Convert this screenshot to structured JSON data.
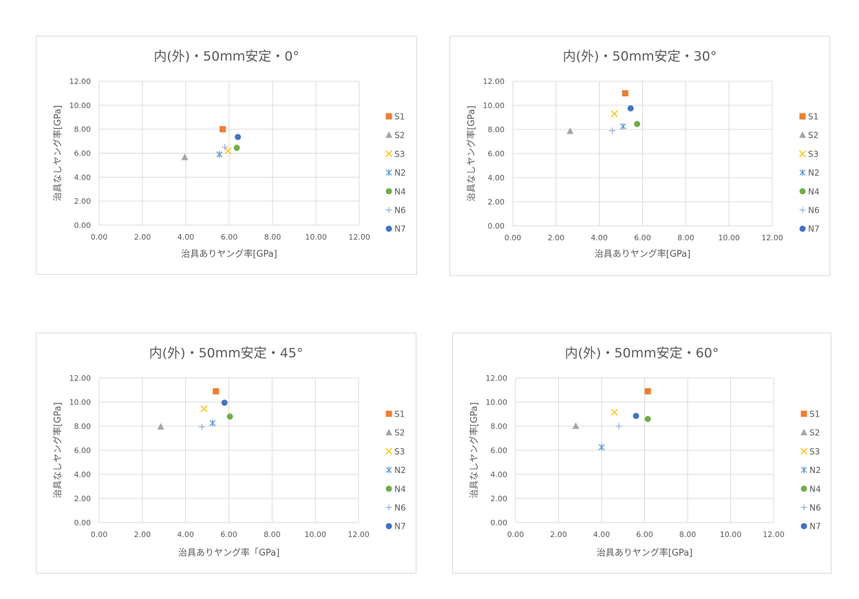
{
  "colors": {
    "S1": "#ed7d31",
    "S2": "#a5a5a5",
    "S3": "#ffc000",
    "N2": "#5b9bd5",
    "N4": "#70ad47",
    "N6": "#8faadc",
    "N7": "#4472c4"
  },
  "chart_data": [
    {
      "type": "scatter",
      "title": "内(外)・50mm安定・0°",
      "xlabel": "治具ありヤング率[GPa]",
      "ylabel": "治具なしヤング率[GPa]",
      "xlim": [
        0,
        12
      ],
      "ylim": [
        0,
        12
      ],
      "x_ticks": [
        "0.00",
        "2.00",
        "4.00",
        "6.00",
        "8.00",
        "10.00",
        "12.00"
      ],
      "y_ticks": [
        "0.00",
        "2.00",
        "4.00",
        "6.00",
        "8.00",
        "10.00",
        "12.00"
      ],
      "grid": true,
      "legend": "right",
      "series": [
        {
          "name": "S1",
          "marker": "square-icon",
          "x": 5.7,
          "y": 8.0
        },
        {
          "name": "S2",
          "marker": "triangle-icon",
          "x": 3.95,
          "y": 5.65
        },
        {
          "name": "S3",
          "marker": "x-icon",
          "x": 5.95,
          "y": 6.2
        },
        {
          "name": "N2",
          "marker": "star-icon",
          "x": 5.55,
          "y": 5.9
        },
        {
          "name": "N4",
          "marker": "circle-icon",
          "x": 6.35,
          "y": 6.45
        },
        {
          "name": "N6",
          "marker": "plus-icon",
          "x": 5.8,
          "y": 6.5
        },
        {
          "name": "N7",
          "marker": "circle-icon",
          "x": 6.4,
          "y": 7.35
        }
      ]
    },
    {
      "type": "scatter",
      "title": "内(外)・50mm安定・30°",
      "xlabel": "治具ありヤング率[GPa]",
      "ylabel": "治具なしヤング率[GPa]",
      "xlim": [
        0,
        12
      ],
      "ylim": [
        0,
        12
      ],
      "x_ticks": [
        "0.00",
        "2.00",
        "4.00",
        "6.00",
        "8.00",
        "10.00",
        "12.00"
      ],
      "y_ticks": [
        "0.00",
        "2.00",
        "4.00",
        "6.00",
        "8.00",
        "10.00",
        "12.00"
      ],
      "grid": true,
      "legend": "right",
      "series": [
        {
          "name": "S1",
          "marker": "square-icon",
          "x": 5.2,
          "y": 11.0
        },
        {
          "name": "S2",
          "marker": "triangle-icon",
          "x": 2.65,
          "y": 7.85
        },
        {
          "name": "S3",
          "marker": "x-icon",
          "x": 4.7,
          "y": 9.3
        },
        {
          "name": "N2",
          "marker": "star-icon",
          "x": 5.1,
          "y": 8.25
        },
        {
          "name": "N4",
          "marker": "circle-icon",
          "x": 5.75,
          "y": 8.45
        },
        {
          "name": "N6",
          "marker": "plus-icon",
          "x": 4.6,
          "y": 7.9
        },
        {
          "name": "N7",
          "marker": "circle-icon",
          "x": 5.45,
          "y": 9.75
        }
      ]
    },
    {
      "type": "scatter",
      "title": "内(外)・50mm安定・45°",
      "xlabel": "治具ありヤング率「GPa]",
      "ylabel": "治具なしヤング率[GPa]",
      "xlim": [
        0,
        12
      ],
      "ylim": [
        0,
        12
      ],
      "x_ticks": [
        "0.00",
        "2.00",
        "4.00",
        "6.00",
        "8.00",
        "10.00",
        "12.00"
      ],
      "y_ticks": [
        "0.00",
        "2.00",
        "4.00",
        "6.00",
        "8.00",
        "10.00",
        "12.00"
      ],
      "grid": true,
      "legend": "right",
      "series": [
        {
          "name": "S1",
          "marker": "square-icon",
          "x": 5.4,
          "y": 10.9
        },
        {
          "name": "S2",
          "marker": "triangle-icon",
          "x": 2.85,
          "y": 7.95
        },
        {
          "name": "S3",
          "marker": "x-icon",
          "x": 4.85,
          "y": 9.45
        },
        {
          "name": "N2",
          "marker": "star-icon",
          "x": 5.25,
          "y": 8.25
        },
        {
          "name": "N4",
          "marker": "circle-icon",
          "x": 6.05,
          "y": 8.8
        },
        {
          "name": "N6",
          "marker": "plus-icon",
          "x": 4.75,
          "y": 7.95
        },
        {
          "name": "N7",
          "marker": "circle-icon",
          "x": 5.8,
          "y": 9.95
        }
      ]
    },
    {
      "type": "scatter",
      "title": "内(外)・50mm安定・60°",
      "xlabel": "治具ありヤング率[GPa]",
      "ylabel": "治具なしヤング率[GPa]",
      "xlim": [
        0,
        12
      ],
      "ylim": [
        0,
        12
      ],
      "x_ticks": [
        "0.00",
        "2.00",
        "4.00",
        "6.00",
        "8.00",
        "10.00",
        "12.00"
      ],
      "y_ticks": [
        "0.00",
        "2.00",
        "4.00",
        "6.00",
        "8.00",
        "10.00",
        "12.00"
      ],
      "grid": true,
      "legend": "right",
      "series": [
        {
          "name": "S1",
          "marker": "square-icon",
          "x": 6.15,
          "y": 10.9
        },
        {
          "name": "S2",
          "marker": "triangle-icon",
          "x": 2.8,
          "y": 8.0
        },
        {
          "name": "S3",
          "marker": "x-icon",
          "x": 4.6,
          "y": 9.15
        },
        {
          "name": "N2",
          "marker": "star-icon",
          "x": 4.0,
          "y": 6.25
        },
        {
          "name": "N4",
          "marker": "circle-icon",
          "x": 6.15,
          "y": 8.6
        },
        {
          "name": "N6",
          "marker": "plus-icon",
          "x": 4.8,
          "y": 8.0
        },
        {
          "name": "N7",
          "marker": "circle-icon",
          "x": 5.6,
          "y": 8.85
        }
      ]
    }
  ]
}
